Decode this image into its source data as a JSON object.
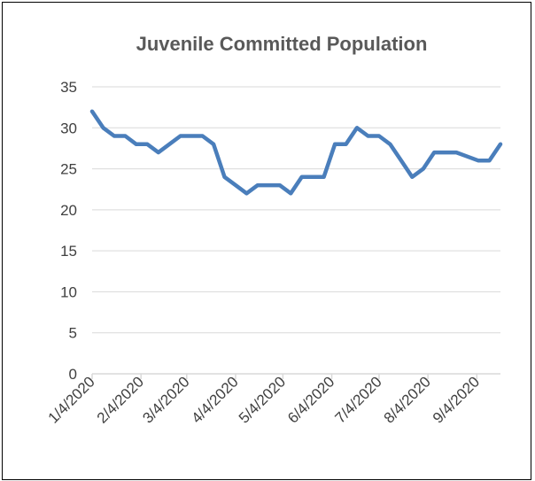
{
  "chart_data": {
    "type": "line",
    "title": "Juvenile Committed Population",
    "xlabel": "",
    "ylabel": "",
    "ylim": [
      0,
      35
    ],
    "yticks": [
      0,
      5,
      10,
      15,
      20,
      25,
      30,
      35
    ],
    "xticks": [
      "1/4/2020",
      "2/4/2020",
      "3/4/2020",
      "4/4/2020",
      "5/4/2020",
      "6/4/2020",
      "7/4/2020",
      "8/4/2020",
      "9/4/2020"
    ],
    "xlim": [
      "2020-01-04",
      "2020-09-19"
    ],
    "grid": true,
    "legend": "none",
    "series": [
      {
        "color": "#4a7ebb",
        "x": [
          "2020-01-04",
          "2020-01-11",
          "2020-01-18",
          "2020-01-25",
          "2020-02-01",
          "2020-02-08",
          "2020-02-15",
          "2020-02-22",
          "2020-02-29",
          "2020-03-07",
          "2020-03-14",
          "2020-03-21",
          "2020-03-28",
          "2020-04-04",
          "2020-04-11",
          "2020-04-18",
          "2020-04-25",
          "2020-05-02",
          "2020-05-09",
          "2020-05-16",
          "2020-05-23",
          "2020-05-30",
          "2020-06-06",
          "2020-06-13",
          "2020-06-20",
          "2020-06-27",
          "2020-07-04",
          "2020-07-11",
          "2020-07-18",
          "2020-07-25",
          "2020-08-01",
          "2020-08-08",
          "2020-08-15",
          "2020-08-22",
          "2020-08-29",
          "2020-09-05",
          "2020-09-12",
          "2020-09-19"
        ],
        "values": [
          32,
          30,
          29,
          29,
          28,
          28,
          27,
          28,
          29,
          29,
          29,
          28,
          24,
          23,
          22,
          23,
          23,
          23,
          22,
          24,
          24,
          24,
          28,
          28,
          30,
          29,
          29,
          28,
          26,
          24,
          25,
          27,
          27,
          27,
          26.5,
          26,
          26,
          28
        ]
      }
    ]
  }
}
